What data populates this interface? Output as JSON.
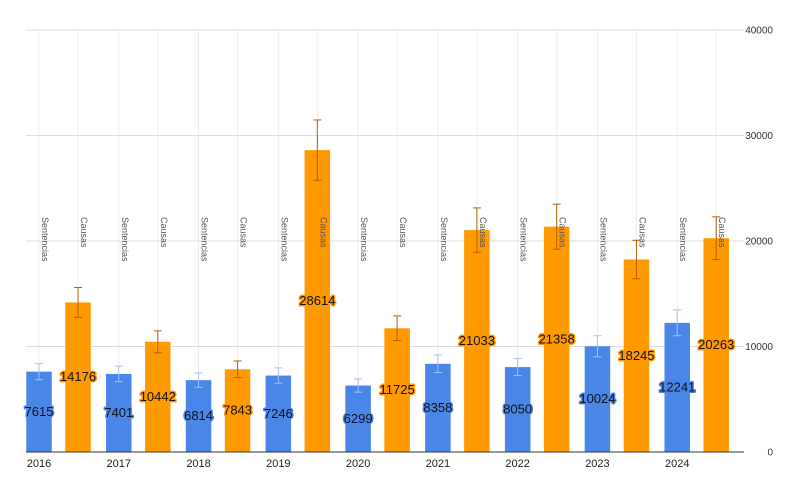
{
  "chart_data": {
    "type": "bar",
    "categories": [
      "2016",
      "2017",
      "2018",
      "2019",
      "2020",
      "2021",
      "2022",
      "2023",
      "2024"
    ],
    "series": [
      {
        "name": "Sentencias",
        "color": "#4a86e8",
        "error_color": "#a4c2f4",
        "values": [
          7615,
          7401,
          6814,
          7246,
          6299,
          8358,
          8050,
          10024,
          12241
        ],
        "labels": [
          "7615",
          "7401",
          "6814",
          "7246",
          "6299",
          "8358",
          "8050",
          "10024",
          "12241"
        ],
        "tags": [
          "Sentencias",
          "Sentencias",
          "Sentencias",
          "Sentencias",
          "Sentencias",
          "Sentencias",
          "Sentencias",
          "Sentencias",
          "Sentencias"
        ]
      },
      {
        "name": "Causas",
        "color": "#ff9900",
        "error_color": "#b45f06",
        "values": [
          14176,
          10442,
          7843,
          28614,
          11725,
          21033,
          21358,
          18245,
          20263
        ],
        "labels": [
          "14176",
          "10442",
          "7843",
          "28614",
          "11725",
          "21033",
          "21358",
          "18245",
          "20263"
        ],
        "tags": [
          "Causas",
          "Causas",
          "Causas",
          "Causas",
          "Causas",
          "Causas",
          "Causas",
          "Causas",
          "Causas"
        ]
      }
    ],
    "error_fraction": 0.1,
    "ylim": [
      0,
      40000
    ],
    "yticks": [
      "0",
      "10000",
      "20000",
      "30000",
      "40000"
    ],
    "ytick_values": [
      0,
      10000,
      20000,
      30000,
      40000
    ],
    "y_axis_side": "right",
    "grid": true,
    "title": "",
    "xlabel": "",
    "ylabel": ""
  }
}
